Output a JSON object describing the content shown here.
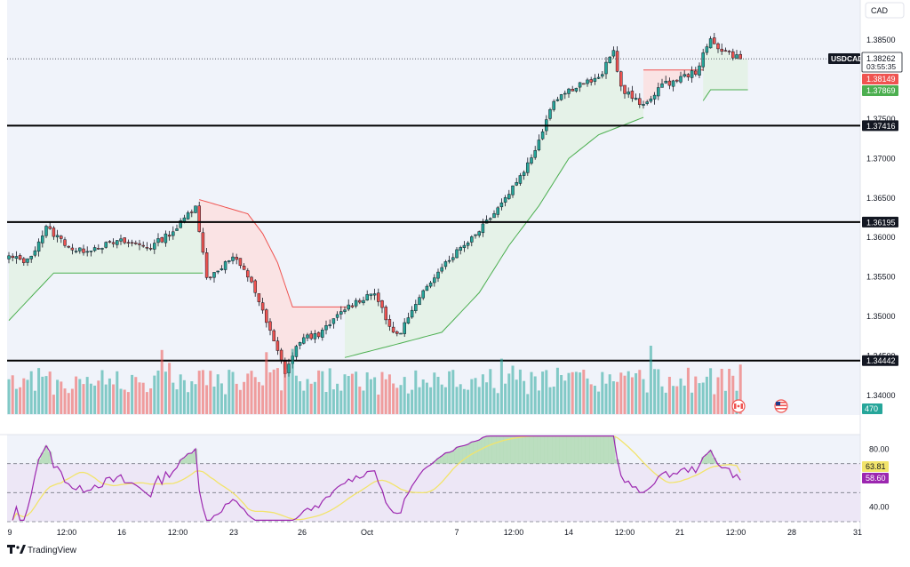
{
  "symbol": "USDCAD",
  "currency": "CAD",
  "countdown": "03:55:35",
  "price_tags": {
    "last": "1.38262",
    "upper_band": "1.38149",
    "lower_band": "1.37869"
  },
  "volume_value": "470",
  "brand": "TradingView",
  "colors": {
    "bull": "#26a69a",
    "bear": "#ef5350",
    "support_fill": "#e3f2e6",
    "support_line": "#4caf50",
    "resistance_fill": "#fbe1e1",
    "resistance_line": "#ef5350",
    "rsi_line": "#9c27b0",
    "rsi_ma": "#f2e46b",
    "rsi_band": "#ede7f6",
    "level_line": "#000000"
  },
  "chart_data": [
    {
      "type": "candlestick",
      "panel": "price",
      "price_axis_ticks": [
        "1.38500",
        "1.37500",
        "1.37000",
        "1.36500",
        "1.36000",
        "1.35500",
        "1.35000",
        "1.34500",
        "1.34000"
      ],
      "time_axis_ticks": [
        "9",
        "12:00",
        "16",
        "12:00",
        "23",
        "26",
        "Oct",
        "7",
        "12:00",
        "14",
        "12:00",
        "21",
        "12:00",
        "28",
        "31"
      ],
      "ylim": [
        1.3385,
        1.3885
      ],
      "horizontal_levels": [
        {
          "value": 1.37416,
          "label": "1.37416"
        },
        {
          "value": 1.36195,
          "label": "1.36195"
        },
        {
          "value": 1.34442,
          "label": "1.34442"
        }
      ],
      "legs": [
        [
          0,
          1.3575
        ],
        [
          5,
          1.357
        ],
        [
          10,
          1.3612
        ],
        [
          18,
          1.3582
        ],
        [
          30,
          1.3595
        ],
        [
          38,
          1.3588
        ],
        [
          45,
          1.3612
        ],
        [
          50,
          1.3642
        ],
        [
          53,
          1.3548
        ],
        [
          60,
          1.3575
        ],
        [
          65,
          1.3545
        ],
        [
          68,
          1.3505
        ],
        [
          74,
          1.343
        ],
        [
          78,
          1.347
        ],
        [
          84,
          1.348
        ],
        [
          90,
          1.351
        ],
        [
          98,
          1.3532
        ],
        [
          101,
          1.3495
        ],
        [
          104,
          1.3475
        ],
        [
          115,
          1.356
        ],
        [
          125,
          1.3605
        ],
        [
          133,
          1.365
        ],
        [
          140,
          1.37
        ],
        [
          146,
          1.3775
        ],
        [
          153,
          1.3795
        ],
        [
          158,
          1.38
        ],
        [
          162,
          1.3836
        ],
        [
          164,
          1.379
        ],
        [
          170,
          1.3765
        ],
        [
          174,
          1.379
        ],
        [
          184,
          1.381
        ],
        [
          188,
          1.385
        ],
        [
          191,
          1.3838
        ],
        [
          196,
          1.3826
        ]
      ],
      "supertrend": [
        {
          "trend": "up",
          "x_range": [
            0,
            52
          ],
          "values": [
            [
              0,
              1.3495
            ],
            [
              12,
              1.3555
            ],
            [
              52,
              1.3555
            ]
          ]
        },
        {
          "trend": "down",
          "x_range": [
            51,
            91
          ],
          "values": [
            [
              51,
              1.3648
            ],
            [
              64,
              1.363
            ],
            [
              68,
              1.3605
            ],
            [
              72,
              1.3568
            ],
            [
              76,
              1.3512
            ],
            [
              91,
              1.3512
            ]
          ]
        },
        {
          "trend": "up",
          "x_range": [
            90,
            170
          ],
          "values": [
            [
              90,
              1.3448
            ],
            [
              104,
              1.3465
            ],
            [
              116,
              1.348
            ],
            [
              126,
              1.353
            ],
            [
              134,
              1.359
            ],
            [
              142,
              1.364
            ],
            [
              150,
              1.37
            ],
            [
              158,
              1.373
            ],
            [
              170,
              1.3752
            ]
          ]
        },
        {
          "trend": "down",
          "x_range": [
            170,
            186
          ],
          "values": [
            [
              170,
              1.3812
            ],
            [
              186,
              1.3812
            ]
          ]
        },
        {
          "trend": "up",
          "x_range": [
            186,
            198
          ],
          "values": [
            [
              186,
              1.3773
            ],
            [
              188,
              1.3787
            ],
            [
              198,
              1.3787
            ]
          ]
        }
      ]
    },
    {
      "type": "bar",
      "panel": "volume",
      "last_value": 470,
      "ylim": [
        0,
        800
      ]
    },
    {
      "type": "line",
      "panel": "rsi",
      "series": [
        {
          "values_key": "rsi",
          "last": 58.6
        },
        {
          "values_key": "rsi_ma",
          "last": 63.81
        }
      ],
      "ylim": [
        30,
        90
      ],
      "y_ticks": [
        "80.00",
        "40.00"
      ],
      "levels": [
        70,
        50,
        30
      ],
      "last_labels": {
        "rsi_ma": "63.81",
        "rsi": "58.60"
      }
    }
  ]
}
